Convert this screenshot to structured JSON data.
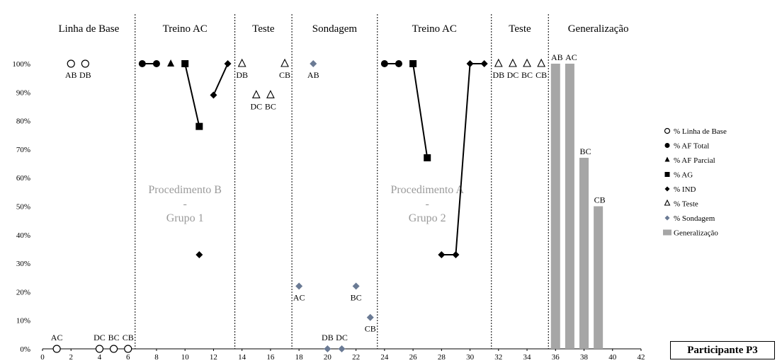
{
  "chart_data": {
    "type": "scatter",
    "xlim": [
      0,
      42
    ],
    "x_ticks": [
      0,
      2,
      4,
      6,
      8,
      10,
      12,
      14,
      16,
      18,
      20,
      22,
      24,
      26,
      28,
      30,
      32,
      34,
      36,
      38,
      40,
      42
    ],
    "ylim": [
      0,
      100
    ],
    "y_ticks": [
      "0%",
      "10%",
      "20%",
      "30%",
      "40%",
      "50%",
      "60%",
      "70%",
      "80%",
      "90%",
      "100%"
    ],
    "grid": false,
    "legend_position": "right",
    "phases": [
      {
        "label": "Linha de Base",
        "start": 0,
        "end": 6.5
      },
      {
        "label": "Treino AC",
        "start": 6.5,
        "end": 13.5
      },
      {
        "label": "Teste",
        "start": 13.5,
        "end": 17.5
      },
      {
        "label": "Sondagem",
        "start": 17.5,
        "end": 23.5
      },
      {
        "label": "Treino AC",
        "start": 23.5,
        "end": 31.5
      },
      {
        "label": "Teste",
        "start": 31.5,
        "end": 35.5
      },
      {
        "label": "Generalização",
        "start": 35.5,
        "end": 42
      }
    ],
    "procedure_labels": [
      {
        "lines": [
          "Procedimento B",
          "-",
          "Grupo 1"
        ],
        "x": 10
      },
      {
        "lines": [
          "Procedimento A",
          "-",
          "Grupo 2"
        ],
        "x": 27
      }
    ],
    "series": [
      {
        "name": "% Linha de Base",
        "marker": "open-circle",
        "connect": false,
        "points": [
          {
            "x": 1,
            "y": 0,
            "label": "AC"
          },
          {
            "x": 2,
            "y": 100,
            "label": "AB"
          },
          {
            "x": 3,
            "y": 100,
            "label": "DB"
          },
          {
            "x": 4,
            "y": 0,
            "label": "DC"
          },
          {
            "x": 5,
            "y": 0,
            "label": "BC"
          },
          {
            "x": 6,
            "y": 0,
            "label": "CB"
          }
        ]
      },
      {
        "name": "% AF Total",
        "marker": "circle",
        "connect": true,
        "points": [
          {
            "x": 7,
            "y": 100
          },
          {
            "x": 8,
            "y": 100
          }
        ]
      },
      {
        "name": "% AF Total",
        "marker": "circle",
        "connect": true,
        "points": [
          {
            "x": 24,
            "y": 100
          },
          {
            "x": 25,
            "y": 100
          }
        ]
      },
      {
        "name": "% AF Parcial",
        "marker": "triangle",
        "connect": false,
        "points": [
          {
            "x": 9,
            "y": 100
          }
        ]
      },
      {
        "name": "% AG",
        "marker": "square",
        "connect": true,
        "points": [
          {
            "x": 10,
            "y": 100
          },
          {
            "x": 11,
            "y": 78
          }
        ]
      },
      {
        "name": "% AG",
        "marker": "square",
        "connect": true,
        "points": [
          {
            "x": 26,
            "y": 100
          },
          {
            "x": 27,
            "y": 67
          }
        ]
      },
      {
        "name": "% IND",
        "marker": "diamond",
        "connect": false,
        "points": [
          {
            "x": 11,
            "y": 33
          }
        ]
      },
      {
        "name": "% IND",
        "marker": "diamond",
        "connect": true,
        "points": [
          {
            "x": 12,
            "y": 89
          },
          {
            "x": 13,
            "y": 100
          }
        ]
      },
      {
        "name": "% IND",
        "marker": "diamond",
        "connect": true,
        "points": [
          {
            "x": 28,
            "y": 33
          },
          {
            "x": 29,
            "y": 33
          },
          {
            "x": 30,
            "y": 100
          },
          {
            "x": 31,
            "y": 100
          }
        ]
      },
      {
        "name": "% Teste",
        "marker": "open-triangle",
        "connect": false,
        "points": [
          {
            "x": 14,
            "y": 100,
            "label": "DB"
          },
          {
            "x": 15,
            "y": 89,
            "label": "DC"
          },
          {
            "x": 16,
            "y": 89,
            "label": "BC"
          },
          {
            "x": 17,
            "y": 100,
            "label": "CB"
          },
          {
            "x": 32,
            "y": 100,
            "label": "DB"
          },
          {
            "x": 33,
            "y": 100,
            "label": "DC"
          },
          {
            "x": 34,
            "y": 100,
            "label": "BC"
          },
          {
            "x": 35,
            "y": 100,
            "label": "CB"
          }
        ]
      },
      {
        "name": "% Sondagem",
        "marker": "blue-diamond",
        "connect": false,
        "points": [
          {
            "x": 18,
            "y": 22,
            "label": "AC"
          },
          {
            "x": 19,
            "y": 100,
            "label": "AB"
          },
          {
            "x": 20,
            "y": 0,
            "label": "DB"
          },
          {
            "x": 21,
            "y": 0,
            "label": "DC"
          },
          {
            "x": 22,
            "y": 22,
            "label": "BC"
          },
          {
            "x": 23,
            "y": 11,
            "label": "CB"
          }
        ]
      }
    ],
    "bars": {
      "name": "Generalização",
      "x": [
        36,
        37,
        38,
        39
      ],
      "values": [
        100,
        100,
        67,
        50
      ],
      "labels": [
        "AB",
        "AC",
        "BC",
        "CB"
      ]
    },
    "legend": [
      {
        "name": "% Linha de Base",
        "marker": "open-circle"
      },
      {
        "name": "% AF Total",
        "marker": "circle"
      },
      {
        "name": "% AF Parcial",
        "marker": "triangle"
      },
      {
        "name": "% AG",
        "marker": "square"
      },
      {
        "name": "% IND",
        "marker": "diamond"
      },
      {
        "name": "% Teste",
        "marker": "open-triangle"
      },
      {
        "name": "% Sondagem",
        "marker": "blue-diamond"
      },
      {
        "name": "Generalização",
        "marker": "bar"
      }
    ],
    "participant_label": "Participante P3",
    "colors": {
      "marker": "#000000",
      "sondagem": "#6a7a94",
      "bar": "#a6a6a6",
      "procedure_text": "#9a9a9a"
    }
  }
}
